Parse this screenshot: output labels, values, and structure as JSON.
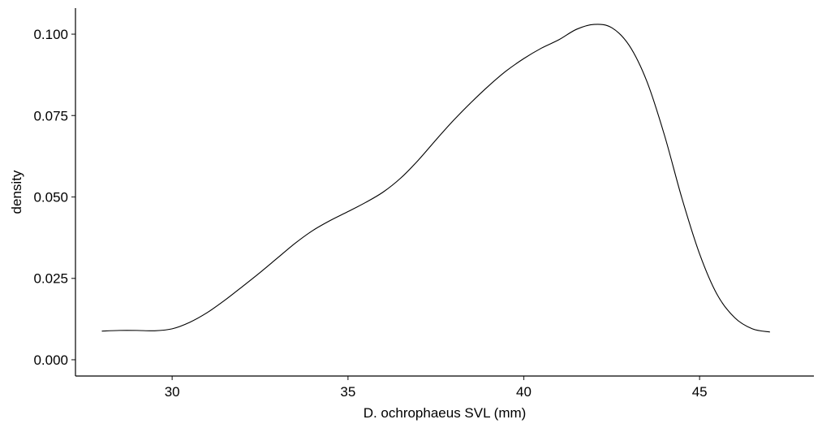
{
  "chart_data": {
    "type": "line",
    "xlabel": "D. ochrophaeus SVL (mm)",
    "ylabel": "density",
    "xlim": [
      27.25,
      48.25
    ],
    "ylim": [
      -0.005,
      0.108
    ],
    "x_ticks": [
      {
        "value": 30,
        "label": "30"
      },
      {
        "value": 35,
        "label": "35"
      },
      {
        "value": 40,
        "label": "40"
      },
      {
        "value": 45,
        "label": "45"
      }
    ],
    "y_ticks": [
      {
        "value": 0.0,
        "label": "0.000"
      },
      {
        "value": 0.025,
        "label": "0.025"
      },
      {
        "value": 0.05,
        "label": "0.050"
      },
      {
        "value": 0.075,
        "label": "0.075"
      },
      {
        "value": 0.1,
        "label": "0.100"
      }
    ],
    "grid": false,
    "line_color": "#000000",
    "series": [
      {
        "x": [
          28.0,
          28.5,
          29.0,
          29.5,
          30.0,
          30.5,
          31.0,
          31.5,
          32.0,
          32.5,
          33.0,
          33.5,
          34.0,
          34.5,
          35.0,
          35.5,
          36.0,
          36.5,
          37.0,
          37.5,
          38.0,
          38.5,
          39.0,
          39.5,
          40.0,
          40.5,
          41.0,
          41.5,
          42.0,
          42.5,
          43.0,
          43.5,
          44.0,
          44.5,
          45.0,
          45.5,
          46.0,
          46.5,
          47.0
        ],
        "y": [
          0.0088,
          0.009,
          0.009,
          0.0089,
          0.0095,
          0.0115,
          0.0145,
          0.0183,
          0.0225,
          0.0268,
          0.0313,
          0.0358,
          0.0397,
          0.0428,
          0.0455,
          0.0483,
          0.0515,
          0.0558,
          0.0613,
          0.0675,
          0.0735,
          0.079,
          0.0841,
          0.0887,
          0.0925,
          0.0957,
          0.0983,
          0.1015,
          0.103,
          0.102,
          0.0965,
          0.0855,
          0.069,
          0.0495,
          0.0325,
          0.02,
          0.0129,
          0.0095,
          0.0085
        ]
      }
    ]
  }
}
